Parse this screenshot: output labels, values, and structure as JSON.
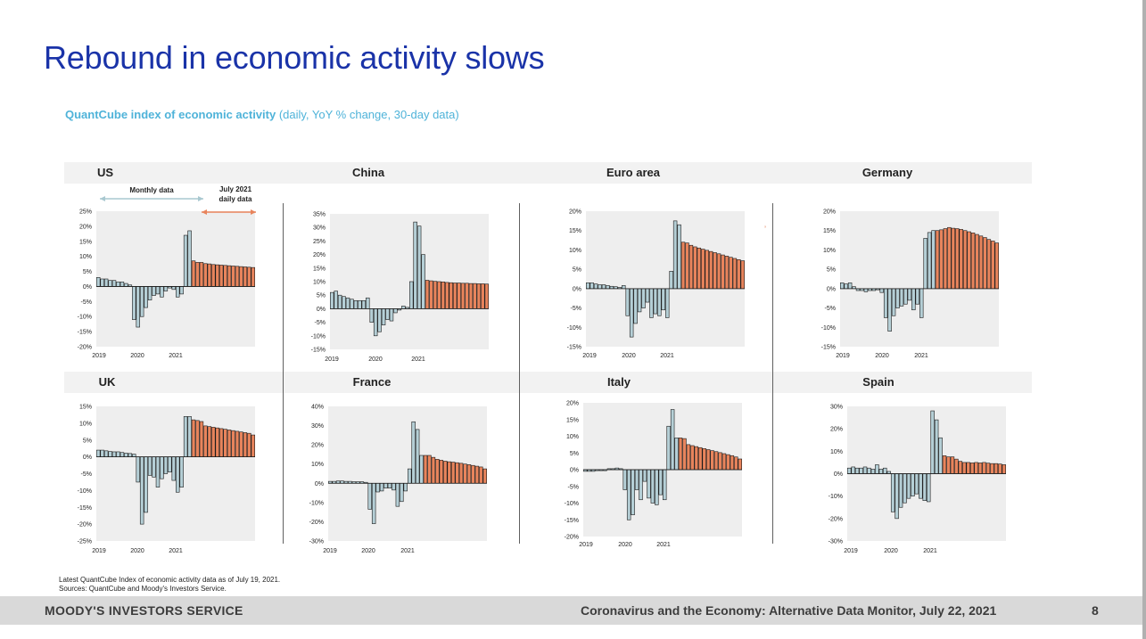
{
  "slide": {
    "title": "Rebound in economic activity slows",
    "subtitle_bold": "QuantCube index of economic activity",
    "subtitle_rest": " (daily, YoY % change, 30-day data)"
  },
  "annotations": {
    "monthly": "Monthly data",
    "daily_line1": "July 2021",
    "daily_line2": "daily data"
  },
  "footnote": {
    "line1": "Latest QuantCube Index of economic activity data as of July 19, 2021.",
    "line2": "Sources: QuantCube and Moody's Investors Service."
  },
  "footer": {
    "brand": "MOODY'S INVESTORS SERVICE",
    "report": "Coronavirus and the Economy: Alternative Data Monitor, July 22, 2021",
    "page": "8"
  },
  "colors": {
    "monthly_bar": "#b5cfd6",
    "daily_bar": "#e8845c",
    "plot_bg": "#eeeeee",
    "title": "#1a33a8",
    "subtitle": "#4fb3d9"
  },
  "chart_data": [
    {
      "type": "bar",
      "title": "US",
      "unit": "%",
      "xticks": [
        "2019",
        "2020",
        "2021"
      ],
      "yticks": [
        25,
        20,
        15,
        10,
        5,
        0,
        -5,
        -10,
        -15,
        -20
      ],
      "ylim": [
        -20,
        25
      ],
      "monthly": [
        3,
        2.5,
        2.5,
        2,
        2,
        1.5,
        1.5,
        1,
        0.5,
        -11,
        -13.5,
        -10,
        -7,
        -4.5,
        -3,
        -2.5,
        -3.5,
        -1.5,
        -0.5,
        -1,
        -3.5,
        -2.5,
        17,
        18.5
      ],
      "daily": [
        8.5,
        8,
        8,
        7.6,
        7.5,
        7.3,
        7.2,
        7.1,
        7,
        6.9,
        6.8,
        6.7,
        6.6,
        6.5,
        6.4,
        6.3
      ]
    },
    {
      "type": "bar",
      "title": "China",
      "unit": "%",
      "xticks": [
        "2019",
        "2020",
        "2021"
      ],
      "yticks": [
        35,
        30,
        25,
        20,
        15,
        10,
        5,
        0,
        -5,
        -10,
        -15
      ],
      "ylim": [
        -15,
        35
      ],
      "monthly": [
        6,
        6.5,
        5,
        4.5,
        4,
        3.5,
        3,
        3,
        3,
        4,
        -5,
        -10,
        -8.5,
        -6,
        -4,
        -4.5,
        -1.5,
        -0.5,
        1,
        0.5,
        10,
        32,
        30.5,
        20
      ],
      "daily": [
        10.5,
        10.3,
        10.1,
        10,
        9.9,
        9.7,
        9.6,
        9.5,
        9.5,
        9.4,
        9.4,
        9.3,
        9.3,
        9.2,
        9.2,
        9.1
      ]
    },
    {
      "type": "bar",
      "title": "Euro area",
      "unit": "%",
      "xticks": [
        "2019",
        "2020",
        "2021"
      ],
      "yticks": [
        20,
        15,
        10,
        5,
        0,
        -5,
        -10,
        -15
      ],
      "ylim": [
        -15,
        20
      ],
      "monthly": [
        1.5,
        1.5,
        1.2,
        1,
        1,
        0.8,
        0.6,
        0.5,
        0.3,
        0.8,
        -7,
        -12.5,
        -9,
        -6,
        -5,
        -3.5,
        -7.5,
        -6.5,
        -7,
        -5.5,
        -7.5,
        4.5,
        17.5,
        16.5
      ],
      "daily": [
        12,
        11.8,
        11.2,
        10.8,
        10.5,
        10.2,
        9.9,
        9.6,
        9.3,
        9,
        8.7,
        8.4,
        8.1,
        7.8,
        7.5,
        7.2
      ]
    },
    {
      "type": "bar",
      "title": "Germany",
      "unit": "%",
      "xticks": [
        "2019",
        "2020",
        "2021"
      ],
      "yticks": [
        20,
        15,
        10,
        5,
        0,
        -5,
        -10,
        -15
      ],
      "ylim": [
        -15,
        20
      ],
      "monthly": [
        1.5,
        1.2,
        1.5,
        0.5,
        -0.5,
        -0.5,
        -0.8,
        -0.5,
        -0.5,
        -0.3,
        -1,
        -7.5,
        -11,
        -7,
        -5,
        -4.5,
        -4,
        -3,
        -5.5,
        -4,
        -7.5,
        13,
        14.5,
        15
      ],
      "daily": [
        15,
        15.2,
        15.5,
        15.8,
        15.6,
        15.5,
        15.3,
        15,
        14.7,
        14.4,
        14,
        13.6,
        13.2,
        12.7,
        12.3,
        11.8
      ]
    },
    {
      "type": "bar",
      "title": "UK",
      "unit": "%",
      "xticks": [
        "2019",
        "2020",
        "2021"
      ],
      "yticks": [
        15,
        10,
        5,
        0,
        -5,
        -10,
        -15,
        -20,
        -25
      ],
      "ylim": [
        -25,
        15
      ],
      "monthly": [
        2,
        2,
        1.8,
        1.6,
        1.5,
        1.5,
        1.3,
        1.1,
        1,
        0.8,
        -7.5,
        -20,
        -16.5,
        -5.5,
        -6,
        -9,
        -6.5,
        -5,
        -4.5,
        -7,
        -10.5,
        -9,
        12,
        12
      ],
      "daily": [
        11,
        10.8,
        10.5,
        9.2,
        9,
        8.8,
        8.6,
        8.4,
        8.2,
        8,
        7.8,
        7.6,
        7.4,
        7.2,
        7,
        6.5
      ]
    },
    {
      "type": "bar",
      "title": "France",
      "unit": "%",
      "xticks": [
        "2019",
        "2020",
        "2021"
      ],
      "yticks": [
        40,
        30,
        20,
        10,
        0,
        -10,
        -20,
        -30
      ],
      "ylim": [
        -30,
        40
      ],
      "monthly": [
        1,
        1,
        1.2,
        1.2,
        1,
        1,
        0.8,
        0.8,
        0.8,
        0.5,
        -13.5,
        -21,
        -4.5,
        -4,
        -2.5,
        -2.5,
        -3.5,
        -12,
        -9.5,
        -4,
        7.5,
        32,
        28,
        14.5
      ],
      "daily": [
        14.5,
        14.5,
        13.5,
        12.5,
        12,
        11.5,
        11.2,
        11,
        10.7,
        10.4,
        10,
        9.7,
        9.3,
        8.9,
        8.5,
        7.5
      ]
    },
    {
      "type": "bar",
      "title": "Italy",
      "unit": "%",
      "xticks": [
        "2019",
        "2020",
        "2021"
      ],
      "yticks": [
        20,
        15,
        10,
        5,
        0,
        -5,
        -10,
        -15,
        -20
      ],
      "ylim": [
        -20,
        20
      ],
      "monthly": [
        -0.5,
        -0.5,
        -0.5,
        -0.3,
        -0.3,
        -0.3,
        0.3,
        0.3,
        0.5,
        0.3,
        -6,
        -15,
        -13.5,
        -6,
        -9,
        -3.5,
        -8.5,
        -10,
        -10.5,
        -7.5,
        -9,
        13,
        18,
        9.5
      ],
      "daily": [
        9.5,
        9.3,
        7.5,
        7.2,
        6.9,
        6.6,
        6.3,
        6,
        5.7,
        5.4,
        5.1,
        4.8,
        4.5,
        4.2,
        3.8,
        3.2
      ]
    },
    {
      "type": "bar",
      "title": "Spain",
      "unit": "%",
      "xticks": [
        "2019",
        "2020",
        "2021"
      ],
      "yticks": [
        30,
        20,
        10,
        0,
        -10,
        -20,
        -30
      ],
      "ylim": [
        -30,
        30
      ],
      "monthly": [
        2.5,
        3,
        2.5,
        2.5,
        3,
        2.5,
        2,
        4,
        2,
        2.5,
        1,
        -17,
        -20,
        -15,
        -13,
        -11,
        -10,
        -9,
        -11,
        -12,
        -12.5,
        28,
        24,
        16
      ],
      "daily": [
        8,
        7.5,
        7.5,
        6.5,
        5.5,
        5,
        5,
        4.8,
        5,
        4.8,
        5,
        4.7,
        4.5,
        4.5,
        4.3,
        4
      ]
    }
  ]
}
